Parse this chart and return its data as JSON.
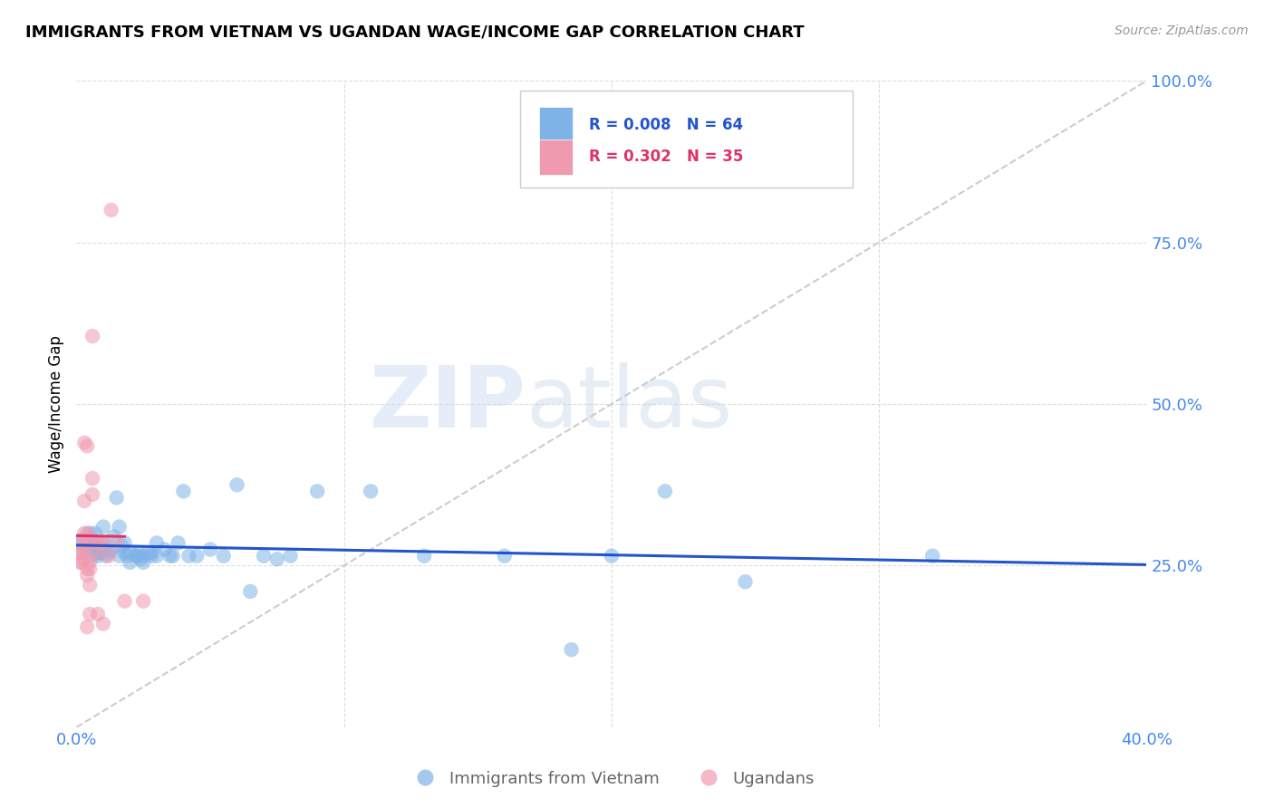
{
  "title": "IMMIGRANTS FROM VIETNAM VS UGANDAN WAGE/INCOME GAP CORRELATION CHART",
  "source": "Source: ZipAtlas.com",
  "ylabel": "Wage/Income Gap",
  "xmin": 0.0,
  "xmax": 0.4,
  "ymin": 0.0,
  "ymax": 1.0,
  "watermark": "ZIPatlas",
  "blue_color": "#7fb3e8",
  "pink_color": "#f09ab0",
  "blue_line_color": "#2255cc",
  "pink_line_color": "#dd3366",
  "ref_line_color": "#cccccc",
  "grid_color": "#dddddd",
  "axis_color": "#4488ee",
  "title_fontsize": 13,
  "tick_fontsize": 13,
  "ylabel_fontsize": 12,
  "blue_scatter": [
    [
      0.001,
      0.285
    ],
    [
      0.002,
      0.29
    ],
    [
      0.003,
      0.27
    ],
    [
      0.004,
      0.28
    ],
    [
      0.005,
      0.29
    ],
    [
      0.005,
      0.3
    ],
    [
      0.006,
      0.265
    ],
    [
      0.006,
      0.28
    ],
    [
      0.007,
      0.3
    ],
    [
      0.007,
      0.285
    ],
    [
      0.008,
      0.265
    ],
    [
      0.008,
      0.27
    ],
    [
      0.009,
      0.27
    ],
    [
      0.009,
      0.28
    ],
    [
      0.01,
      0.285
    ],
    [
      0.01,
      0.31
    ],
    [
      0.011,
      0.275
    ],
    [
      0.011,
      0.265
    ],
    [
      0.012,
      0.27
    ],
    [
      0.013,
      0.275
    ],
    [
      0.014,
      0.295
    ],
    [
      0.015,
      0.355
    ],
    [
      0.016,
      0.265
    ],
    [
      0.016,
      0.31
    ],
    [
      0.017,
      0.28
    ],
    [
      0.018,
      0.285
    ],
    [
      0.018,
      0.27
    ],
    [
      0.019,
      0.265
    ],
    [
      0.02,
      0.255
    ],
    [
      0.02,
      0.27
    ],
    [
      0.022,
      0.265
    ],
    [
      0.023,
      0.265
    ],
    [
      0.023,
      0.27
    ],
    [
      0.024,
      0.26
    ],
    [
      0.025,
      0.265
    ],
    [
      0.025,
      0.255
    ],
    [
      0.027,
      0.27
    ],
    [
      0.028,
      0.27
    ],
    [
      0.028,
      0.265
    ],
    [
      0.03,
      0.265
    ],
    [
      0.03,
      0.285
    ],
    [
      0.033,
      0.275
    ],
    [
      0.035,
      0.265
    ],
    [
      0.036,
      0.265
    ],
    [
      0.038,
      0.285
    ],
    [
      0.04,
      0.365
    ],
    [
      0.042,
      0.265
    ],
    [
      0.045,
      0.265
    ],
    [
      0.05,
      0.275
    ],
    [
      0.055,
      0.265
    ],
    [
      0.06,
      0.375
    ],
    [
      0.065,
      0.21
    ],
    [
      0.07,
      0.265
    ],
    [
      0.075,
      0.26
    ],
    [
      0.08,
      0.265
    ],
    [
      0.09,
      0.365
    ],
    [
      0.11,
      0.365
    ],
    [
      0.13,
      0.265
    ],
    [
      0.16,
      0.265
    ],
    [
      0.185,
      0.12
    ],
    [
      0.2,
      0.265
    ],
    [
      0.22,
      0.365
    ],
    [
      0.25,
      0.225
    ],
    [
      0.32,
      0.265
    ]
  ],
  "pink_scatter": [
    [
      0.001,
      0.27
    ],
    [
      0.001,
      0.255
    ],
    [
      0.002,
      0.255
    ],
    [
      0.002,
      0.27
    ],
    [
      0.002,
      0.285
    ],
    [
      0.003,
      0.26
    ],
    [
      0.003,
      0.28
    ],
    [
      0.003,
      0.3
    ],
    [
      0.003,
      0.35
    ],
    [
      0.003,
      0.44
    ],
    [
      0.004,
      0.285
    ],
    [
      0.004,
      0.3
    ],
    [
      0.004,
      0.435
    ],
    [
      0.004,
      0.245
    ],
    [
      0.004,
      0.235
    ],
    [
      0.004,
      0.155
    ],
    [
      0.005,
      0.29
    ],
    [
      0.005,
      0.255
    ],
    [
      0.005,
      0.245
    ],
    [
      0.005,
      0.22
    ],
    [
      0.005,
      0.175
    ],
    [
      0.006,
      0.385
    ],
    [
      0.006,
      0.36
    ],
    [
      0.006,
      0.605
    ],
    [
      0.007,
      0.27
    ],
    [
      0.008,
      0.285
    ],
    [
      0.008,
      0.175
    ],
    [
      0.009,
      0.285
    ],
    [
      0.01,
      0.285
    ],
    [
      0.01,
      0.16
    ],
    [
      0.012,
      0.265
    ],
    [
      0.013,
      0.8
    ],
    [
      0.015,
      0.285
    ],
    [
      0.018,
      0.195
    ],
    [
      0.025,
      0.195
    ]
  ],
  "figsize": [
    14.06,
    8.92
  ],
  "dpi": 100
}
